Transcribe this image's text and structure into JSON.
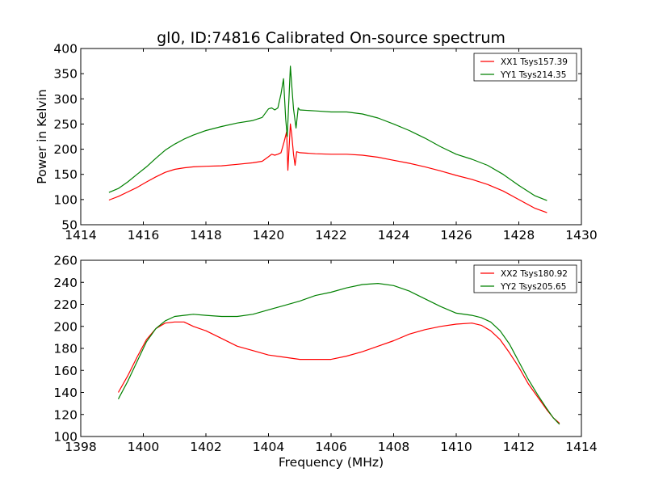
{
  "figure": {
    "title": "gl0, ID:74816 Calibrated On-source spectrum",
    "xlabel": "Frequency (MHz)",
    "ylabel_top": "Power in Kelvin"
  },
  "colors": {
    "red": "#ff0000",
    "green": "#008000"
  },
  "chart_data": [
    {
      "type": "line",
      "title": "gl0, ID:74816 Calibrated On-source spectrum",
      "xlabel": "",
      "ylabel": "Power in Kelvin",
      "xlim": [
        1414,
        1430
      ],
      "ylim": [
        50,
        400
      ],
      "xticks": [
        1414,
        1416,
        1418,
        1420,
        1422,
        1424,
        1426,
        1428,
        1430
      ],
      "yticks": [
        50,
        100,
        150,
        200,
        250,
        300,
        350,
        400
      ],
      "legend": "top-right",
      "series": [
        {
          "name": "XX1 Tsys157.39",
          "color": "#ff0000",
          "points": [
            [
              1414.9,
              99
            ],
            [
              1415.2,
              106
            ],
            [
              1415.5,
              115
            ],
            [
              1415.8,
              124
            ],
            [
              1416.1,
              135
            ],
            [
              1416.4,
              145
            ],
            [
              1416.7,
              154
            ],
            [
              1417.0,
              160
            ],
            [
              1417.3,
              163
            ],
            [
              1417.6,
              165
            ],
            [
              1418.0,
              166
            ],
            [
              1418.5,
              167
            ],
            [
              1419.0,
              170
            ],
            [
              1419.5,
              173
            ],
            [
              1419.8,
              176
            ],
            [
              1420.0,
              185
            ],
            [
              1420.1,
              190
            ],
            [
              1420.2,
              188
            ],
            [
              1420.3,
              190
            ],
            [
              1420.4,
              193
            ],
            [
              1420.5,
              215
            ],
            [
              1420.58,
              235
            ],
            [
              1420.62,
              158
            ],
            [
              1420.66,
              205
            ],
            [
              1420.7,
              250
            ],
            [
              1420.74,
              230
            ],
            [
              1420.8,
              190
            ],
            [
              1420.85,
              168
            ],
            [
              1420.9,
              195
            ],
            [
              1421.0,
              193
            ],
            [
              1421.5,
              191
            ],
            [
              1422.0,
              190
            ],
            [
              1422.5,
              190
            ],
            [
              1423.0,
              188
            ],
            [
              1423.5,
              184
            ],
            [
              1424.0,
              178
            ],
            [
              1424.5,
              172
            ],
            [
              1425.0,
              165
            ],
            [
              1425.5,
              157
            ],
            [
              1426.0,
              148
            ],
            [
              1426.5,
              140
            ],
            [
              1427.0,
              130
            ],
            [
              1427.5,
              117
            ],
            [
              1428.0,
              100
            ],
            [
              1428.5,
              83
            ],
            [
              1428.9,
              74
            ]
          ]
        },
        {
          "name": "YY1 Tsys214.35",
          "color": "#008000",
          "points": [
            [
              1414.9,
              114
            ],
            [
              1415.2,
              122
            ],
            [
              1415.5,
              135
            ],
            [
              1415.8,
              150
            ],
            [
              1416.1,
              165
            ],
            [
              1416.4,
              182
            ],
            [
              1416.7,
              198
            ],
            [
              1417.0,
              210
            ],
            [
              1417.3,
              220
            ],
            [
              1417.6,
              228
            ],
            [
              1418.0,
              237
            ],
            [
              1418.5,
              245
            ],
            [
              1419.0,
              252
            ],
            [
              1419.5,
              257
            ],
            [
              1419.8,
              263
            ],
            [
              1420.0,
              280
            ],
            [
              1420.1,
              282
            ],
            [
              1420.2,
              278
            ],
            [
              1420.3,
              282
            ],
            [
              1420.4,
              310
            ],
            [
              1420.48,
              340
            ],
            [
              1420.55,
              260
            ],
            [
              1420.6,
              225
            ],
            [
              1420.66,
              310
            ],
            [
              1420.7,
              365
            ],
            [
              1420.75,
              320
            ],
            [
              1420.8,
              280
            ],
            [
              1420.88,
              242
            ],
            [
              1420.95,
              282
            ],
            [
              1421.0,
              278
            ],
            [
              1421.5,
              276
            ],
            [
              1422.0,
              274
            ],
            [
              1422.5,
              274
            ],
            [
              1423.0,
              270
            ],
            [
              1423.5,
              262
            ],
            [
              1424.0,
              250
            ],
            [
              1424.5,
              237
            ],
            [
              1425.0,
              222
            ],
            [
              1425.5,
              205
            ],
            [
              1426.0,
              190
            ],
            [
              1426.5,
              180
            ],
            [
              1427.0,
              168
            ],
            [
              1427.5,
              150
            ],
            [
              1428.0,
              128
            ],
            [
              1428.5,
              108
            ],
            [
              1428.9,
              98
            ]
          ]
        }
      ]
    },
    {
      "type": "line",
      "title": "",
      "xlabel": "Frequency (MHz)",
      "ylabel": "",
      "xlim": [
        1398,
        1414
      ],
      "ylim": [
        100,
        260
      ],
      "xticks": [
        1398,
        1400,
        1402,
        1404,
        1406,
        1408,
        1410,
        1412,
        1414
      ],
      "yticks": [
        100,
        120,
        140,
        160,
        180,
        200,
        220,
        240,
        260
      ],
      "legend": "top-right",
      "series": [
        {
          "name": "XX2 Tsys180.92",
          "color": "#ff0000",
          "points": [
            [
              1399.2,
              140
            ],
            [
              1399.5,
              155
            ],
            [
              1399.8,
              172
            ],
            [
              1400.1,
              188
            ],
            [
              1400.4,
              198
            ],
            [
              1400.7,
              203
            ],
            [
              1401.0,
              204
            ],
            [
              1401.3,
              204
            ],
            [
              1401.6,
              200
            ],
            [
              1402.0,
              196
            ],
            [
              1402.5,
              189
            ],
            [
              1403.0,
              182
            ],
            [
              1403.5,
              178
            ],
            [
              1404.0,
              174
            ],
            [
              1404.5,
              172
            ],
            [
              1405.0,
              170
            ],
            [
              1405.5,
              170
            ],
            [
              1406.0,
              170
            ],
            [
              1406.5,
              173
            ],
            [
              1407.0,
              177
            ],
            [
              1407.5,
              182
            ],
            [
              1408.0,
              187
            ],
            [
              1408.5,
              193
            ],
            [
              1409.0,
              197
            ],
            [
              1409.5,
              200
            ],
            [
              1410.0,
              202
            ],
            [
              1410.5,
              203
            ],
            [
              1410.8,
              201
            ],
            [
              1411.1,
              196
            ],
            [
              1411.4,
              188
            ],
            [
              1411.7,
              176
            ],
            [
              1412.0,
              163
            ],
            [
              1412.3,
              148
            ],
            [
              1412.6,
              136
            ],
            [
              1412.9,
              124
            ],
            [
              1413.1,
              117
            ],
            [
              1413.3,
              112
            ]
          ]
        },
        {
          "name": "YY2 Tsys205.65",
          "color": "#008000",
          "points": [
            [
              1399.2,
              134
            ],
            [
              1399.5,
              150
            ],
            [
              1399.8,
              168
            ],
            [
              1400.1,
              186
            ],
            [
              1400.4,
              198
            ],
            [
              1400.7,
              205
            ],
            [
              1401.0,
              209
            ],
            [
              1401.3,
              210
            ],
            [
              1401.6,
              211
            ],
            [
              1402.0,
              210
            ],
            [
              1402.5,
              209
            ],
            [
              1403.0,
              209
            ],
            [
              1403.5,
              211
            ],
            [
              1404.0,
              215
            ],
            [
              1404.5,
              219
            ],
            [
              1405.0,
              223
            ],
            [
              1405.5,
              228
            ],
            [
              1406.0,
              231
            ],
            [
              1406.5,
              235
            ],
            [
              1407.0,
              238
            ],
            [
              1407.5,
              239
            ],
            [
              1408.0,
              237
            ],
            [
              1408.5,
              232
            ],
            [
              1409.0,
              225
            ],
            [
              1409.5,
              218
            ],
            [
              1410.0,
              212
            ],
            [
              1410.5,
              210
            ],
            [
              1410.8,
              208
            ],
            [
              1411.1,
              204
            ],
            [
              1411.4,
              196
            ],
            [
              1411.7,
              184
            ],
            [
              1412.0,
              168
            ],
            [
              1412.3,
              152
            ],
            [
              1412.6,
              138
            ],
            [
              1412.9,
              125
            ],
            [
              1413.1,
              117
            ],
            [
              1413.3,
              111
            ]
          ]
        }
      ]
    }
  ]
}
